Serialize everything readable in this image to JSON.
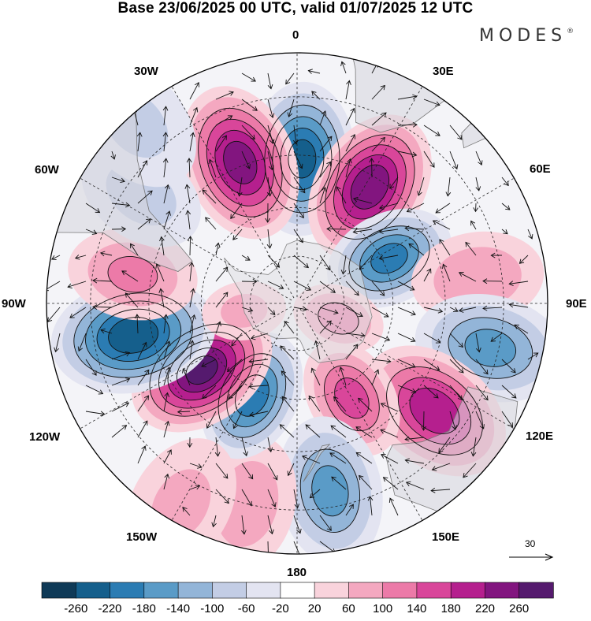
{
  "title": "Base 23/06/2025 00 UTC, valid 01/07/2025 12 UTC",
  "brand": {
    "name": "MODES",
    "mark": "®"
  },
  "longitude_labels": [
    {
      "id": "lon-0",
      "text": "0"
    },
    {
      "id": "lon-30e",
      "text": "30E"
    },
    {
      "id": "lon-60e",
      "text": "60E"
    },
    {
      "id": "lon-90e",
      "text": "90E"
    },
    {
      "id": "lon-120e",
      "text": "120E"
    },
    {
      "id": "lon-150e",
      "text": "150E"
    },
    {
      "id": "lon-180",
      "text": "180"
    },
    {
      "id": "lon-150w",
      "text": "150W"
    },
    {
      "id": "lon-120w",
      "text": "120W"
    },
    {
      "id": "lon-90w",
      "text": "90W"
    },
    {
      "id": "lon-60w",
      "text": "60W"
    },
    {
      "id": "lon-30w",
      "text": "30W"
    }
  ],
  "reference_vector": {
    "value": "30"
  },
  "colorbar": {
    "tick_labels": [
      "-260",
      "-220",
      "-180",
      "-140",
      "-100",
      "-60",
      "-20",
      "20",
      "60",
      "100",
      "140",
      "180",
      "220",
      "260"
    ],
    "colors": [
      "#0f3a57",
      "#155f8c",
      "#2b7cb3",
      "#5a9bc7",
      "#93b5d8",
      "#c3cde5",
      "#e3e4f1",
      "#ffffff",
      "#f9d3dc",
      "#f4a8c0",
      "#ec7aa8",
      "#d9469a",
      "#b51f8e",
      "#82157f",
      "#551a6e"
    ]
  },
  "anomaly_centers": [
    {
      "id": "anom-0",
      "value": -230,
      "lon": 2,
      "lat": -46
    },
    {
      "id": "anom-1",
      "value": 240,
      "lon": -22,
      "lat": -44
    },
    {
      "id": "anom-2",
      "value": 250,
      "lon": 32,
      "lat": -48
    },
    {
      "id": "anom-3",
      "value": -190,
      "lon": 64,
      "lat": -58
    },
    {
      "id": "anom-4",
      "value": 90,
      "lon": 82,
      "lat": -36
    },
    {
      "id": "anom-5",
      "value": -150,
      "lon": 103,
      "lat": -32
    },
    {
      "id": "anom-6",
      "value": 210,
      "lon": 128,
      "lat": -38
    },
    {
      "id": "anom-7",
      "value": 150,
      "lon": 150,
      "lat": -56
    },
    {
      "id": "anom-8",
      "value": 110,
      "lon": 110,
      "lat": -76
    },
    {
      "id": "anom-9",
      "value": -150,
      "lon": 170,
      "lat": -34
    },
    {
      "id": "anom-10",
      "value": 80,
      "lon": -166,
      "lat": -30
    },
    {
      "id": "anom-11",
      "value": -200,
      "lon": -154,
      "lat": -58
    },
    {
      "id": "anom-12",
      "value": 270,
      "lon": -125,
      "lat": -54
    },
    {
      "id": "anom-13",
      "value": -250,
      "lon": -101,
      "lat": -40
    },
    {
      "id": "anom-14",
      "value": 100,
      "lon": -80,
      "lat": -40
    },
    {
      "id": "anom-15",
      "value": -70,
      "lon": -55,
      "lat": -34
    },
    {
      "id": "anom-16",
      "value": 60,
      "lon": -98,
      "lat": -73
    },
    {
      "id": "anom-17",
      "value": 60,
      "lon": -150,
      "lat": -24
    },
    {
      "id": "anom-18",
      "value": -60,
      "lon": -42,
      "lat": -22
    }
  ],
  "map_settings": {
    "projection": "south-polar-stereographic",
    "boundary_lat": -20,
    "graticule_lons": [
      0,
      30,
      60,
      90,
      120,
      150,
      180,
      -150,
      -120,
      -90,
      -60,
      -30
    ],
    "graticule_lats": [
      -30,
      -45,
      -60,
      -75
    ]
  }
}
